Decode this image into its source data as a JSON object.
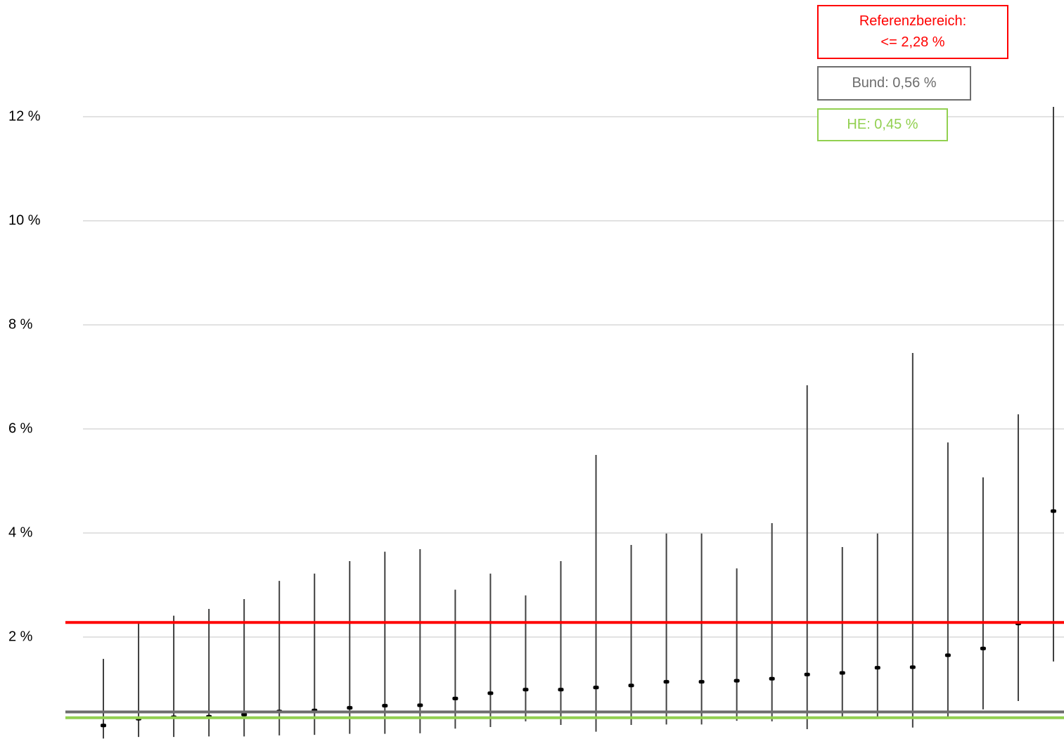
{
  "chart_data": {
    "type": "errorbar",
    "ylim": [
      0,
      14
    ],
    "yticks": [
      {
        "value": 2,
        "label": "2 %"
      },
      {
        "value": 4,
        "label": "4 %"
      },
      {
        "value": 6,
        "label": "6 %"
      },
      {
        "value": 8,
        "label": "8 %"
      },
      {
        "value": 10,
        "label": "10 %"
      },
      {
        "value": 12,
        "label": "12 %"
      }
    ],
    "grid": true,
    "series": [
      {
        "color": "#000000",
        "bar_color": "#404040",
        "values": [
          0.3,
          0.43,
          0.46,
          0.47,
          0.51,
          0.57,
          0.59,
          0.64,
          0.68,
          0.69,
          0.82,
          0.92,
          0.99,
          0.99,
          1.03,
          1.07,
          1.14,
          1.14,
          1.16,
          1.2,
          1.28,
          1.31,
          1.41,
          1.42,
          1.65,
          1.78,
          2.26,
          4.42
        ],
        "lower": [
          0.05,
          0.08,
          0.08,
          0.09,
          0.09,
          0.11,
          0.12,
          0.14,
          0.14,
          0.15,
          0.24,
          0.27,
          0.38,
          0.31,
          0.18,
          0.31,
          0.32,
          0.32,
          0.39,
          0.38,
          0.23,
          0.45,
          0.47,
          0.26,
          0.46,
          0.61,
          0.77,
          1.53
        ],
        "upper": [
          1.58,
          2.28,
          2.41,
          2.54,
          2.73,
          3.08,
          3.22,
          3.46,
          3.64,
          3.69,
          2.91,
          3.22,
          2.8,
          3.46,
          5.5,
          3.77,
          3.99,
          3.99,
          3.32,
          4.19,
          6.84,
          3.73,
          3.99,
          7.46,
          5.74,
          5.07,
          6.28,
          12.19
        ]
      }
    ],
    "reference_lines": [
      {
        "label_lines": [
          "Referenzbereich:",
          "<= 2,28 %"
        ],
        "value": 2.28,
        "color": "#ff0000"
      },
      {
        "label_lines": [
          "Bund: 0,56 %"
        ],
        "value": 0.56,
        "color": "#6d6d6d"
      },
      {
        "label_lines": [
          "HE: 0,45 %"
        ],
        "value": 0.45,
        "color": "#92d050"
      }
    ]
  }
}
